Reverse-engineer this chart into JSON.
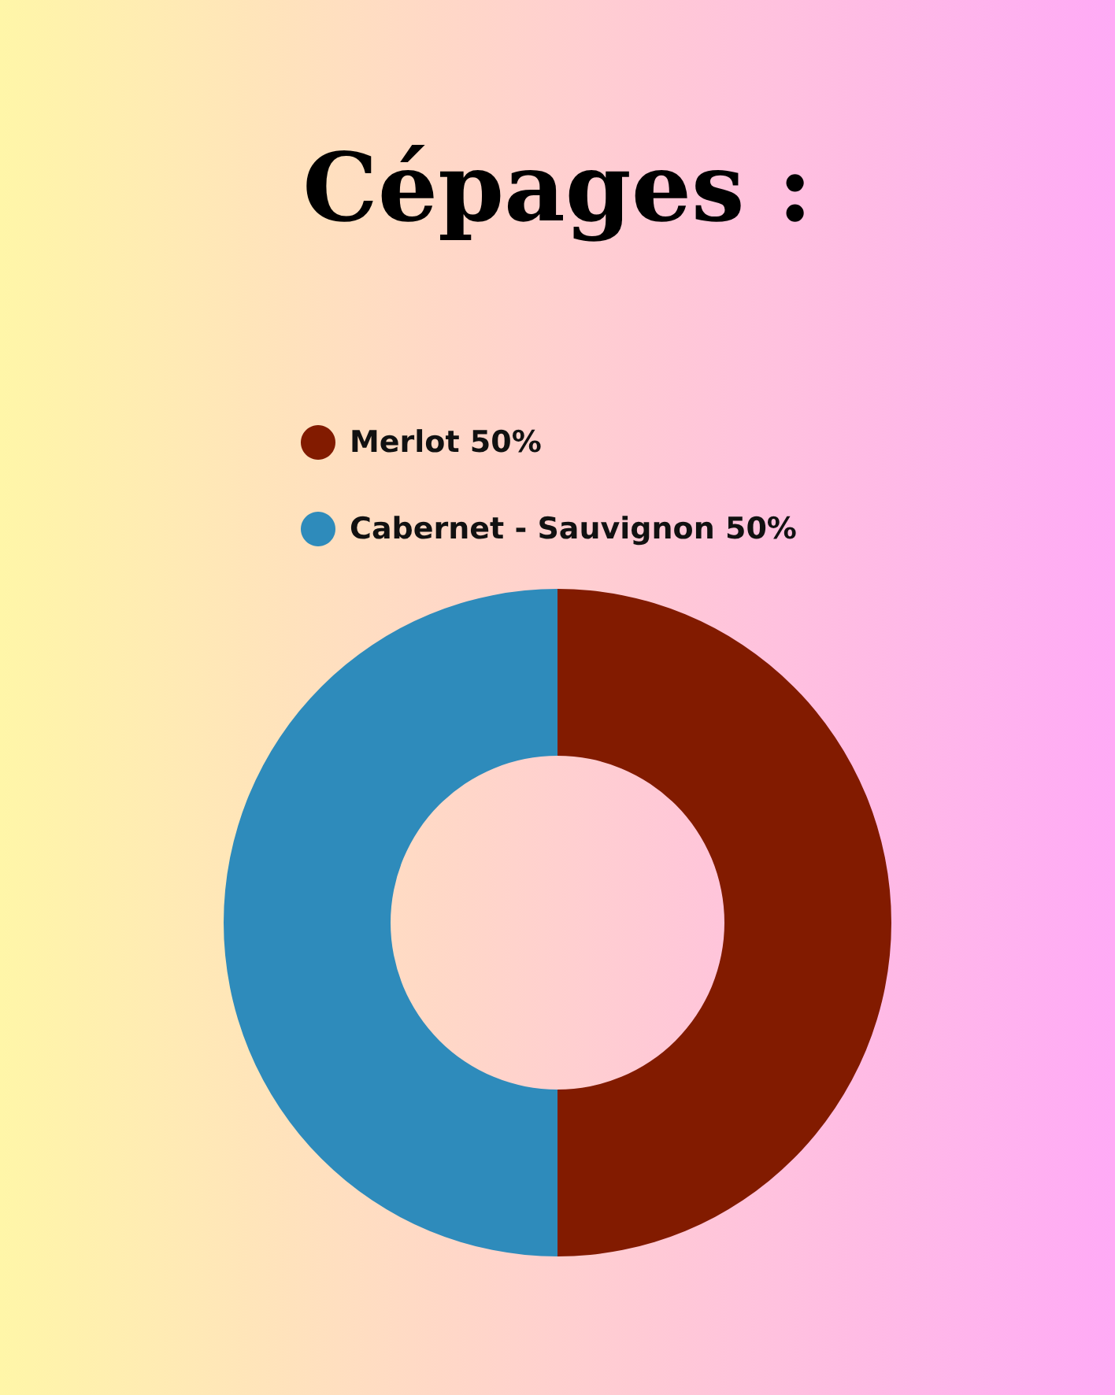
{
  "chart_data": {
    "type": "donut",
    "title": "Cépages :",
    "categories": [
      "Merlot 50%",
      "Cabernet - Sauvignon 50%"
    ],
    "values": [
      50,
      50
    ],
    "colors": [
      "#821b00",
      "#2e8bbb"
    ],
    "legend": "top left"
  }
}
